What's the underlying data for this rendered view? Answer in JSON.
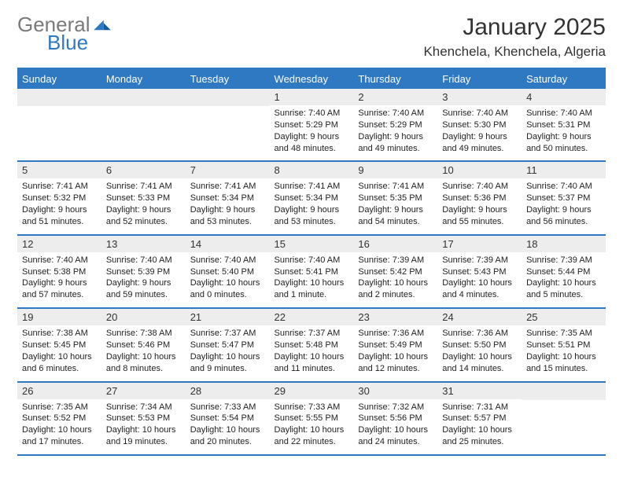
{
  "logo": {
    "text1": "General",
    "text2": "Blue"
  },
  "colors": {
    "accent": "#2f78c2",
    "header_bg": "#2f78c2",
    "header_fg": "#ffffff",
    "daynum_bg": "#ededed",
    "text": "#222222",
    "logo_gray": "#7a7a7a"
  },
  "title": "January 2025",
  "location": "Khenchela, Khenchela, Algeria",
  "weekdays": [
    "Sunday",
    "Monday",
    "Tuesday",
    "Wednesday",
    "Thursday",
    "Friday",
    "Saturday"
  ],
  "grid": {
    "leading_blanks": 3,
    "days": [
      {
        "n": 1,
        "sunrise": "7:40 AM",
        "sunset": "5:29 PM",
        "daylight": "9 hours and 48 minutes."
      },
      {
        "n": 2,
        "sunrise": "7:40 AM",
        "sunset": "5:29 PM",
        "daylight": "9 hours and 49 minutes."
      },
      {
        "n": 3,
        "sunrise": "7:40 AM",
        "sunset": "5:30 PM",
        "daylight": "9 hours and 49 minutes."
      },
      {
        "n": 4,
        "sunrise": "7:40 AM",
        "sunset": "5:31 PM",
        "daylight": "9 hours and 50 minutes."
      },
      {
        "n": 5,
        "sunrise": "7:41 AM",
        "sunset": "5:32 PM",
        "daylight": "9 hours and 51 minutes."
      },
      {
        "n": 6,
        "sunrise": "7:41 AM",
        "sunset": "5:33 PM",
        "daylight": "9 hours and 52 minutes."
      },
      {
        "n": 7,
        "sunrise": "7:41 AM",
        "sunset": "5:34 PM",
        "daylight": "9 hours and 53 minutes."
      },
      {
        "n": 8,
        "sunrise": "7:41 AM",
        "sunset": "5:34 PM",
        "daylight": "9 hours and 53 minutes."
      },
      {
        "n": 9,
        "sunrise": "7:41 AM",
        "sunset": "5:35 PM",
        "daylight": "9 hours and 54 minutes."
      },
      {
        "n": 10,
        "sunrise": "7:40 AM",
        "sunset": "5:36 PM",
        "daylight": "9 hours and 55 minutes."
      },
      {
        "n": 11,
        "sunrise": "7:40 AM",
        "sunset": "5:37 PM",
        "daylight": "9 hours and 56 minutes."
      },
      {
        "n": 12,
        "sunrise": "7:40 AM",
        "sunset": "5:38 PM",
        "daylight": "9 hours and 57 minutes."
      },
      {
        "n": 13,
        "sunrise": "7:40 AM",
        "sunset": "5:39 PM",
        "daylight": "9 hours and 59 minutes."
      },
      {
        "n": 14,
        "sunrise": "7:40 AM",
        "sunset": "5:40 PM",
        "daylight": "10 hours and 0 minutes."
      },
      {
        "n": 15,
        "sunrise": "7:40 AM",
        "sunset": "5:41 PM",
        "daylight": "10 hours and 1 minute."
      },
      {
        "n": 16,
        "sunrise": "7:39 AM",
        "sunset": "5:42 PM",
        "daylight": "10 hours and 2 minutes."
      },
      {
        "n": 17,
        "sunrise": "7:39 AM",
        "sunset": "5:43 PM",
        "daylight": "10 hours and 4 minutes."
      },
      {
        "n": 18,
        "sunrise": "7:39 AM",
        "sunset": "5:44 PM",
        "daylight": "10 hours and 5 minutes."
      },
      {
        "n": 19,
        "sunrise": "7:38 AM",
        "sunset": "5:45 PM",
        "daylight": "10 hours and 6 minutes."
      },
      {
        "n": 20,
        "sunrise": "7:38 AM",
        "sunset": "5:46 PM",
        "daylight": "10 hours and 8 minutes."
      },
      {
        "n": 21,
        "sunrise": "7:37 AM",
        "sunset": "5:47 PM",
        "daylight": "10 hours and 9 minutes."
      },
      {
        "n": 22,
        "sunrise": "7:37 AM",
        "sunset": "5:48 PM",
        "daylight": "10 hours and 11 minutes."
      },
      {
        "n": 23,
        "sunrise": "7:36 AM",
        "sunset": "5:49 PM",
        "daylight": "10 hours and 12 minutes."
      },
      {
        "n": 24,
        "sunrise": "7:36 AM",
        "sunset": "5:50 PM",
        "daylight": "10 hours and 14 minutes."
      },
      {
        "n": 25,
        "sunrise": "7:35 AM",
        "sunset": "5:51 PM",
        "daylight": "10 hours and 15 minutes."
      },
      {
        "n": 26,
        "sunrise": "7:35 AM",
        "sunset": "5:52 PM",
        "daylight": "10 hours and 17 minutes."
      },
      {
        "n": 27,
        "sunrise": "7:34 AM",
        "sunset": "5:53 PM",
        "daylight": "10 hours and 19 minutes."
      },
      {
        "n": 28,
        "sunrise": "7:33 AM",
        "sunset": "5:54 PM",
        "daylight": "10 hours and 20 minutes."
      },
      {
        "n": 29,
        "sunrise": "7:33 AM",
        "sunset": "5:55 PM",
        "daylight": "10 hours and 22 minutes."
      },
      {
        "n": 30,
        "sunrise": "7:32 AM",
        "sunset": "5:56 PM",
        "daylight": "10 hours and 24 minutes."
      },
      {
        "n": 31,
        "sunrise": "7:31 AM",
        "sunset": "5:57 PM",
        "daylight": "10 hours and 25 minutes."
      }
    ]
  },
  "labels": {
    "sunrise": "Sunrise:",
    "sunset": "Sunset:",
    "daylight": "Daylight:"
  },
  "typography": {
    "title_fontsize": 30,
    "location_fontsize": 17,
    "header_fontsize": 13,
    "body_fontsize": 11
  }
}
